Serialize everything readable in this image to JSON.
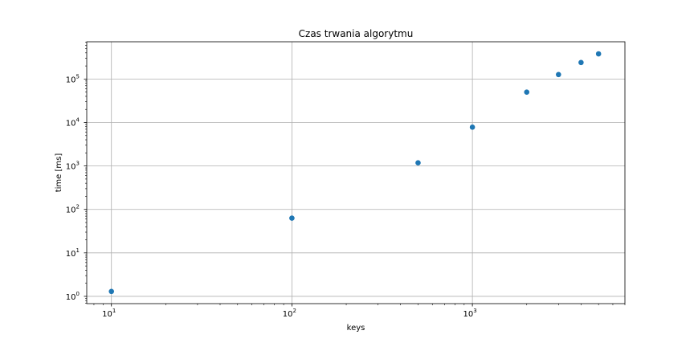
{
  "chart_data": {
    "type": "scatter",
    "title": "Czas trwania algorytmu",
    "xlabel": "keys",
    "ylabel": "time [ms]",
    "xscale": "log",
    "yscale": "log",
    "xlim": [
      7.3,
      7000
    ],
    "ylim": [
      0.68,
      720000
    ],
    "grid": true,
    "color": "#1f77b4",
    "x_ticks": [
      {
        "value": 10,
        "base": "10",
        "exp": "1"
      },
      {
        "value": 100,
        "base": "10",
        "exp": "2"
      },
      {
        "value": 1000,
        "base": "10",
        "exp": "3"
      }
    ],
    "y_ticks": [
      {
        "value": 1,
        "base": "10",
        "exp": "0"
      },
      {
        "value": 10,
        "base": "10",
        "exp": "1"
      },
      {
        "value": 100,
        "base": "10",
        "exp": "2"
      },
      {
        "value": 1000,
        "base": "10",
        "exp": "3"
      },
      {
        "value": 10000,
        "base": "10",
        "exp": "4"
      },
      {
        "value": 100000,
        "base": "10",
        "exp": "5"
      }
    ],
    "x": [
      10,
      100,
      500,
      1000,
      2000,
      3000,
      4000,
      5000
    ],
    "y": [
      1.3,
      63,
      1180,
      7800,
      50000,
      127000,
      240000,
      380000
    ]
  }
}
